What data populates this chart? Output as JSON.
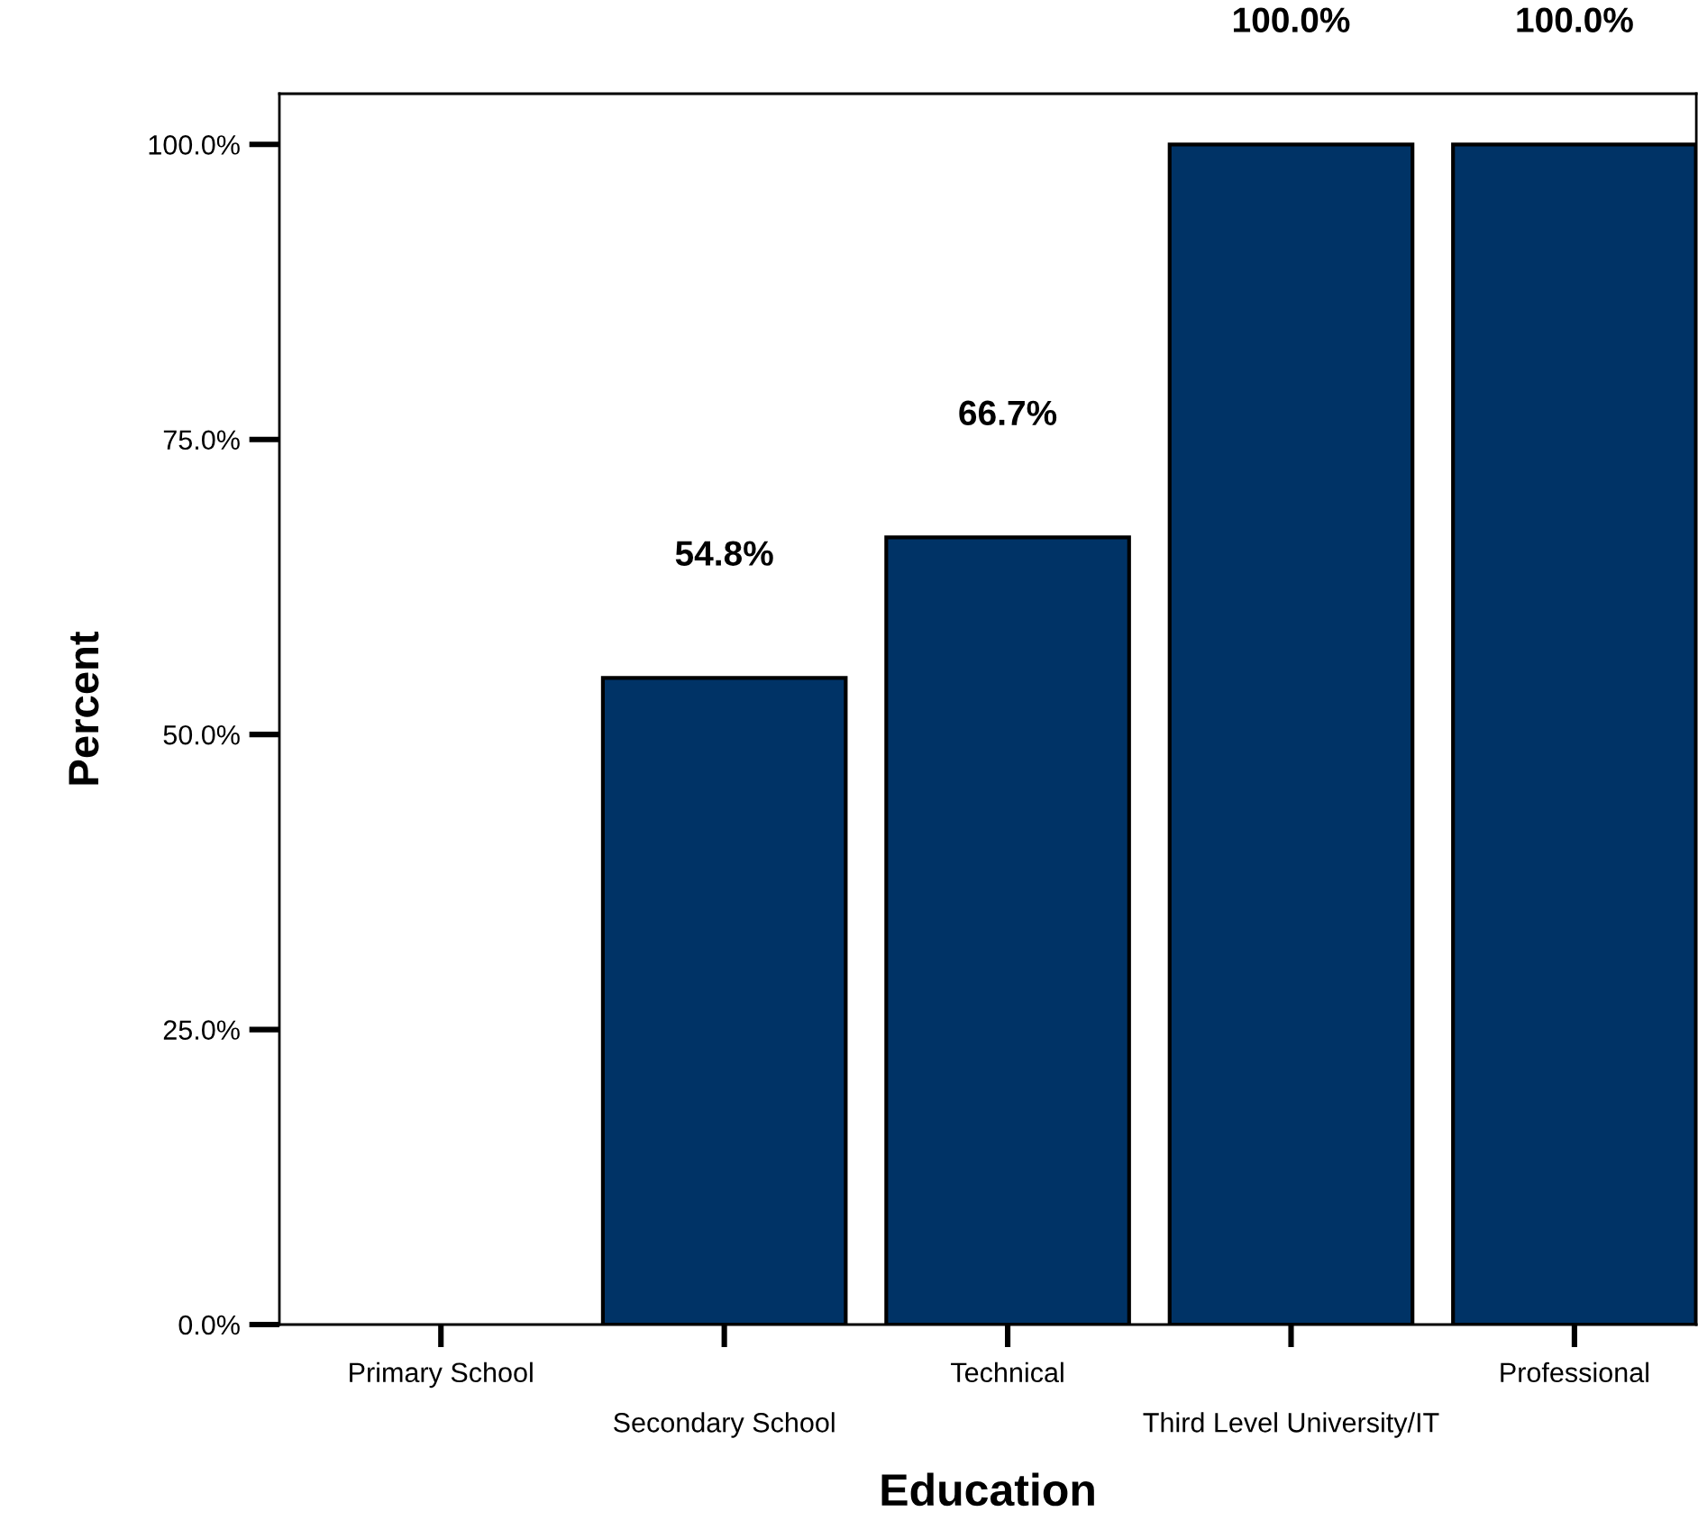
{
  "chart_data": {
    "type": "bar",
    "xlabel": "Education",
    "ylabel": "Percent",
    "categories": [
      "Primary School",
      "Secondary School",
      "Technical",
      "Third Level University/IT",
      "Professional"
    ],
    "values": [
      null,
      54.8,
      66.7,
      100.0,
      100.0
    ],
    "value_labels": [
      null,
      "54.8%",
      "66.7%",
      "100.0%",
      "100.0%"
    ],
    "color": "#003366",
    "ylim": [
      0,
      104.3
    ],
    "yticks": [
      {
        "value": 0,
        "label": "0.0%"
      },
      {
        "value": 25,
        "label": "25.0%"
      },
      {
        "value": 50,
        "label": "50.0%"
      },
      {
        "value": 75,
        "label": "75.0%"
      },
      {
        "value": 100,
        "label": "100.0%"
      }
    ],
    "grid": false,
    "legend": false
  }
}
